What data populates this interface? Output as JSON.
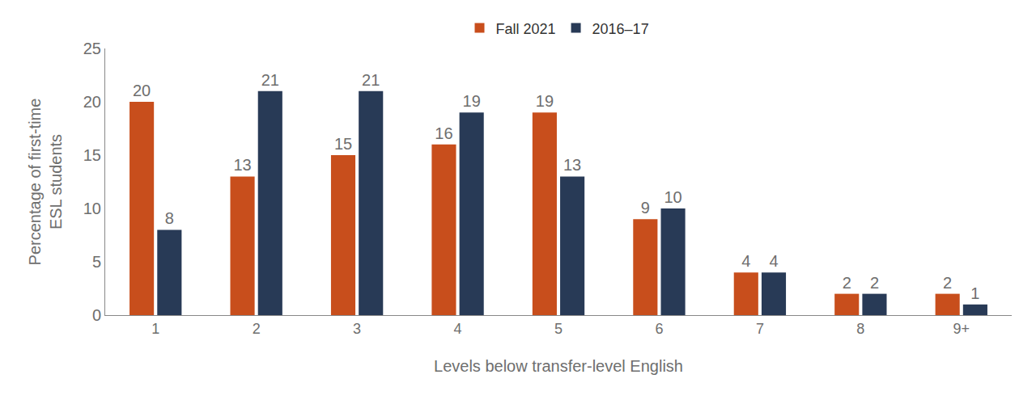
{
  "chart_data": {
    "type": "bar",
    "x_label": "Levels below transfer-level English",
    "y_label": "Percentage of first-time\nESL students",
    "categories": [
      "1",
      "2",
      "3",
      "4",
      "5",
      "6",
      "7",
      "8",
      "9+"
    ],
    "series": [
      {
        "name": "Fall 2021",
        "color": "#c84e1c",
        "values": [
          20,
          13,
          15,
          16,
          19,
          9,
          4,
          2,
          2
        ]
      },
      {
        "name": "2016–17",
        "color": "#283a56",
        "values": [
          8,
          21,
          21,
          19,
          13,
          10,
          4,
          2,
          1
        ]
      }
    ],
    "ylim": [
      0,
      25
    ],
    "yticks": [
      0,
      5,
      10,
      15,
      20,
      25
    ],
    "grid": false,
    "legend": "top",
    "data_labels": true
  }
}
